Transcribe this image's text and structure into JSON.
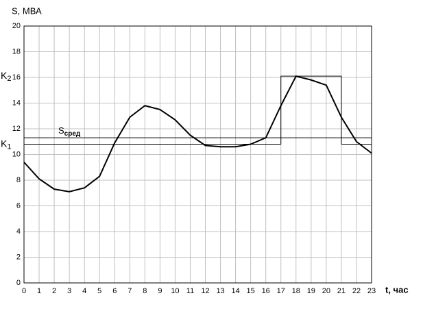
{
  "chart_data": {
    "type": "line",
    "y_label": "S, МВА",
    "x_label": "t, час",
    "x": [
      0,
      1,
      2,
      3,
      4,
      5,
      6,
      7,
      8,
      9,
      10,
      11,
      12,
      13,
      14,
      15,
      16,
      17,
      18,
      19,
      20,
      21,
      22,
      23
    ],
    "values": [
      9.4,
      8.1,
      7.3,
      7.1,
      7.4,
      8.3,
      10.9,
      12.9,
      13.8,
      13.5,
      12.7,
      11.5,
      10.7,
      10.6,
      10.6,
      10.8,
      11.3,
      13.8,
      16.1,
      15.8,
      15.4,
      12.9,
      11.0,
      10.1
    ],
    "color": "#000000",
    "k1": {
      "text": "K",
      "sub": "1",
      "value": 10.8
    },
    "k2": {
      "text": "K",
      "sub": "2",
      "value": 16.1
    },
    "s_avg": {
      "text": "S",
      "sub": "сред",
      "value": 11.3
    },
    "peak_interval": [
      17,
      21
    ],
    "xlim": [
      0,
      23
    ],
    "xticks": [
      0,
      1,
      2,
      3,
      4,
      5,
      6,
      7,
      8,
      9,
      10,
      11,
      12,
      13,
      14,
      15,
      16,
      17,
      18,
      19,
      20,
      21,
      22,
      23
    ],
    "ylim": [
      0,
      20
    ],
    "yticks": [
      0,
      2,
      4,
      6,
      8,
      10,
      12,
      14,
      16,
      18,
      20
    ],
    "grid": true
  }
}
